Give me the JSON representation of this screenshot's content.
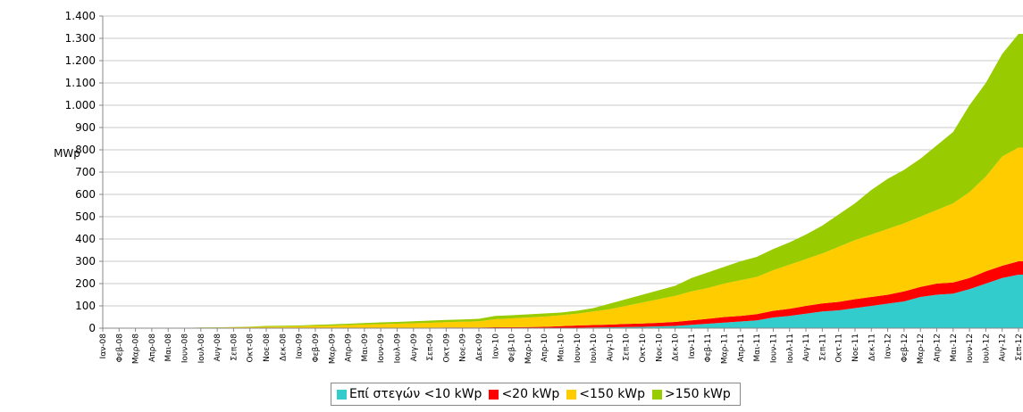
{
  "chart_data": {
    "type": "stacked-area",
    "ylabel": "MWp",
    "categories": [
      "Ιαν-08",
      "Φεβ-08",
      "Μαρ-08",
      "Απρ-08",
      "Μαι-08",
      "Ιουν-08",
      "Ιουλ-08",
      "Αυγ-08",
      "Σεπ-08",
      "Οκτ-08",
      "Νοε-08",
      "Δεκ-08",
      "Ιαν-09",
      "Φεβ-09",
      "Μαρ-09",
      "Απρ-09",
      "Μαι-09",
      "Ιουν-09",
      "Ιουλ-09",
      "Αυγ-09",
      "Σεπ-09",
      "Οκτ-09",
      "Νοε-09",
      "Δεκ-09",
      "Ιαν-10",
      "Φεβ-10",
      "Μαρ-10",
      "Απρ-10",
      "Μαι-10",
      "Ιουν-10",
      "Ιουλ-10",
      "Αυγ-10",
      "Σεπ-10",
      "Οκτ-10",
      "Νοε-10",
      "Δεκ-10",
      "Ιαν-11",
      "Φεβ-11",
      "Μαρ-11",
      "Απρ-11",
      "Μαι-11",
      "Ιουν-11",
      "Ιουλ-11",
      "Αυγ-11",
      "Σεπ-11",
      "Οκτ-11",
      "Νοε-11",
      "Δεκ-11",
      "Ιαν-12",
      "Φεβ-12",
      "Μαρ-12",
      "Απρ-12",
      "Μαι-12",
      "Ιουν-12",
      "Ιουλ-12",
      "Αυγ-12",
      "Σεπ-12"
    ],
    "series": [
      {
        "name": "Επί στεγών <10 kWp",
        "color": "#33cccc",
        "values": [
          0,
          0,
          0,
          0,
          0,
          0,
          0,
          0,
          0,
          0,
          0,
          0,
          0,
          0,
          0,
          0,
          0,
          0,
          0,
          0,
          0,
          0,
          0,
          0,
          0,
          0,
          0,
          0,
          1,
          2,
          3,
          4,
          5,
          6,
          8,
          10,
          15,
          20,
          25,
          30,
          35,
          48,
          55,
          65,
          75,
          80,
          90,
          100,
          110,
          120,
          140,
          150,
          155,
          175,
          200,
          225,
          240
        ]
      },
      {
        "name": "<20 kWp",
        "color": "#ff0000",
        "values": [
          0,
          0,
          0,
          0,
          0,
          0,
          0,
          0,
          0,
          0,
          0,
          0,
          0,
          0,
          0,
          1,
          1,
          1,
          2,
          2,
          2,
          3,
          3,
          3,
          4,
          4,
          5,
          6,
          8,
          10,
          11,
          12,
          14,
          15,
          16,
          18,
          20,
          22,
          25,
          25,
          28,
          30,
          32,
          35,
          36,
          38,
          40,
          40,
          40,
          45,
          45,
          50,
          50,
          50,
          55,
          55,
          60
        ]
      },
      {
        "name": "<150 kWp",
        "color": "#ffcc00",
        "values": [
          0,
          0,
          0,
          0,
          0,
          1,
          2,
          3,
          4,
          5,
          6,
          7,
          8,
          10,
          11,
          13,
          15,
          17,
          18,
          20,
          22,
          24,
          26,
          28,
          36,
          40,
          43,
          46,
          49,
          53,
          61,
          69,
          81,
          94,
          106,
          117,
          130,
          138,
          150,
          160,
          167,
          182,
          198,
          210,
          224,
          247,
          265,
          280,
          295,
          305,
          315,
          330,
          355,
          385,
          425,
          490,
          510
        ]
      },
      {
        "name": ">150 kWp",
        "color": "#99cc00",
        "values": [
          0,
          0,
          0,
          0,
          0,
          0,
          1,
          1,
          1,
          2,
          4,
          4,
          4,
          5,
          6,
          6,
          7,
          8,
          8,
          9,
          10,
          10,
          10,
          11,
          15,
          14,
          14,
          14,
          12,
          13,
          15,
          25,
          30,
          35,
          40,
          45,
          60,
          70,
          75,
          85,
          90,
          95,
          100,
          110,
          125,
          145,
          165,
          200,
          225,
          240,
          260,
          290,
          320,
          390,
          420,
          460,
          510
        ]
      }
    ],
    "ylim": [
      0,
      1400
    ],
    "yticks": [
      0,
      100,
      200,
      300,
      400,
      500,
      600,
      700,
      800,
      900,
      {
        "value": 1000,
        "label": "1.000"
      },
      {
        "value": 1100,
        "label": "1.100"
      },
      {
        "value": 1200,
        "label": "1.200"
      },
      {
        "value": 1300,
        "label": "1.300"
      },
      {
        "value": 1400,
        "label": "1.400"
      }
    ],
    "grid": true
  }
}
